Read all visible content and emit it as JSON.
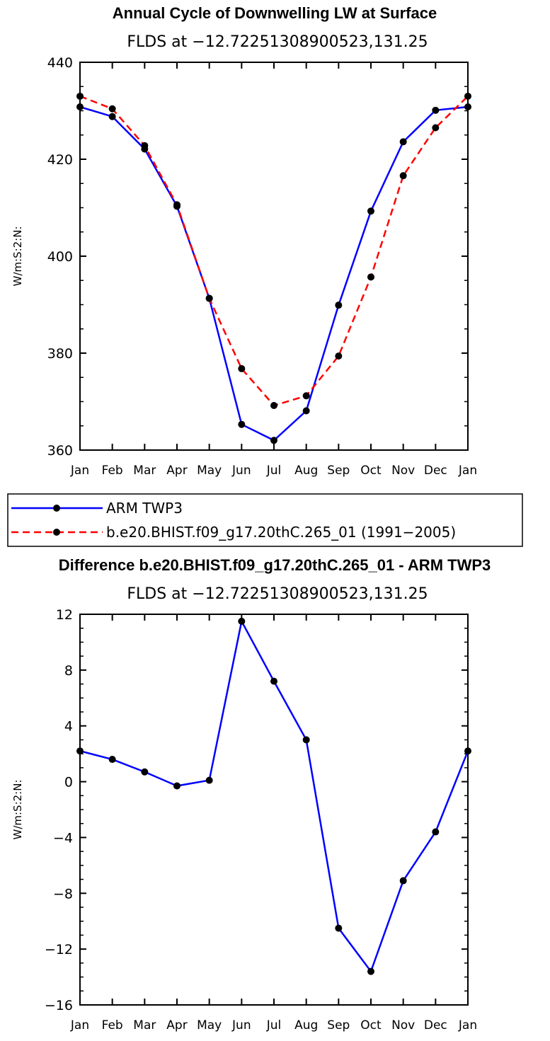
{
  "chart_data": [
    {
      "type": "line",
      "title": "Annual Cycle of Downwelling LW at Surface",
      "subtitle": "FLDS at −12.72251308900523,131.25",
      "xlabel": "",
      "ylabel": "W/m:S:2:N:",
      "categories": [
        "Jan",
        "Feb",
        "Mar",
        "Apr",
        "May",
        "Jun",
        "Jul",
        "Aug",
        "Sep",
        "Oct",
        "Nov",
        "Dec",
        "Jan"
      ],
      "ylim": [
        360,
        440
      ],
      "yticks": [
        360,
        380,
        400,
        420,
        440
      ],
      "series": [
        {
          "name": "ARM TWP3",
          "color": "#0000ff",
          "dash": false,
          "values": [
            430.8,
            428.8,
            422.1,
            410.3,
            391.3,
            365.3,
            362.0,
            368.1,
            389.9,
            409.3,
            423.6,
            430.1,
            430.8
          ]
        },
        {
          "name": "b.e20.BHIST.f09_g17.20thC.265_01 (1991−2005)",
          "color": "#ff0000",
          "dash": true,
          "values": [
            433.0,
            430.4,
            422.8,
            410.6,
            391.3,
            376.8,
            369.2,
            371.2,
            379.4,
            395.7,
            416.6,
            426.5,
            433.0
          ]
        }
      ],
      "legend": [
        "ARM TWP3",
        "b.e20.BHIST.f09_g17.20thC.265_01 (1991−2005)"
      ]
    },
    {
      "type": "line",
      "title": "Difference b.e20.BHIST.f09_g17.20thC.265_01 - ARM TWP3",
      "subtitle": "FLDS at −12.72251308900523,131.25",
      "xlabel": "",
      "ylabel": "W/m:S:2:N:",
      "categories": [
        "Jan",
        "Feb",
        "Mar",
        "Apr",
        "May",
        "Jun",
        "Jul",
        "Aug",
        "Sep",
        "Oct",
        "Nov",
        "Dec",
        "Jan"
      ],
      "ylim": [
        -16,
        12
      ],
      "yticks": [
        -16,
        -12,
        -8,
        -4,
        0,
        4,
        8,
        12
      ],
      "series": [
        {
          "name": "Difference",
          "color": "#0000ff",
          "dash": false,
          "values": [
            2.2,
            1.6,
            0.7,
            -0.3,
            0.1,
            11.5,
            7.2,
            3.0,
            -10.5,
            -13.6,
            -7.1,
            -3.6,
            2.2
          ]
        }
      ]
    }
  ]
}
